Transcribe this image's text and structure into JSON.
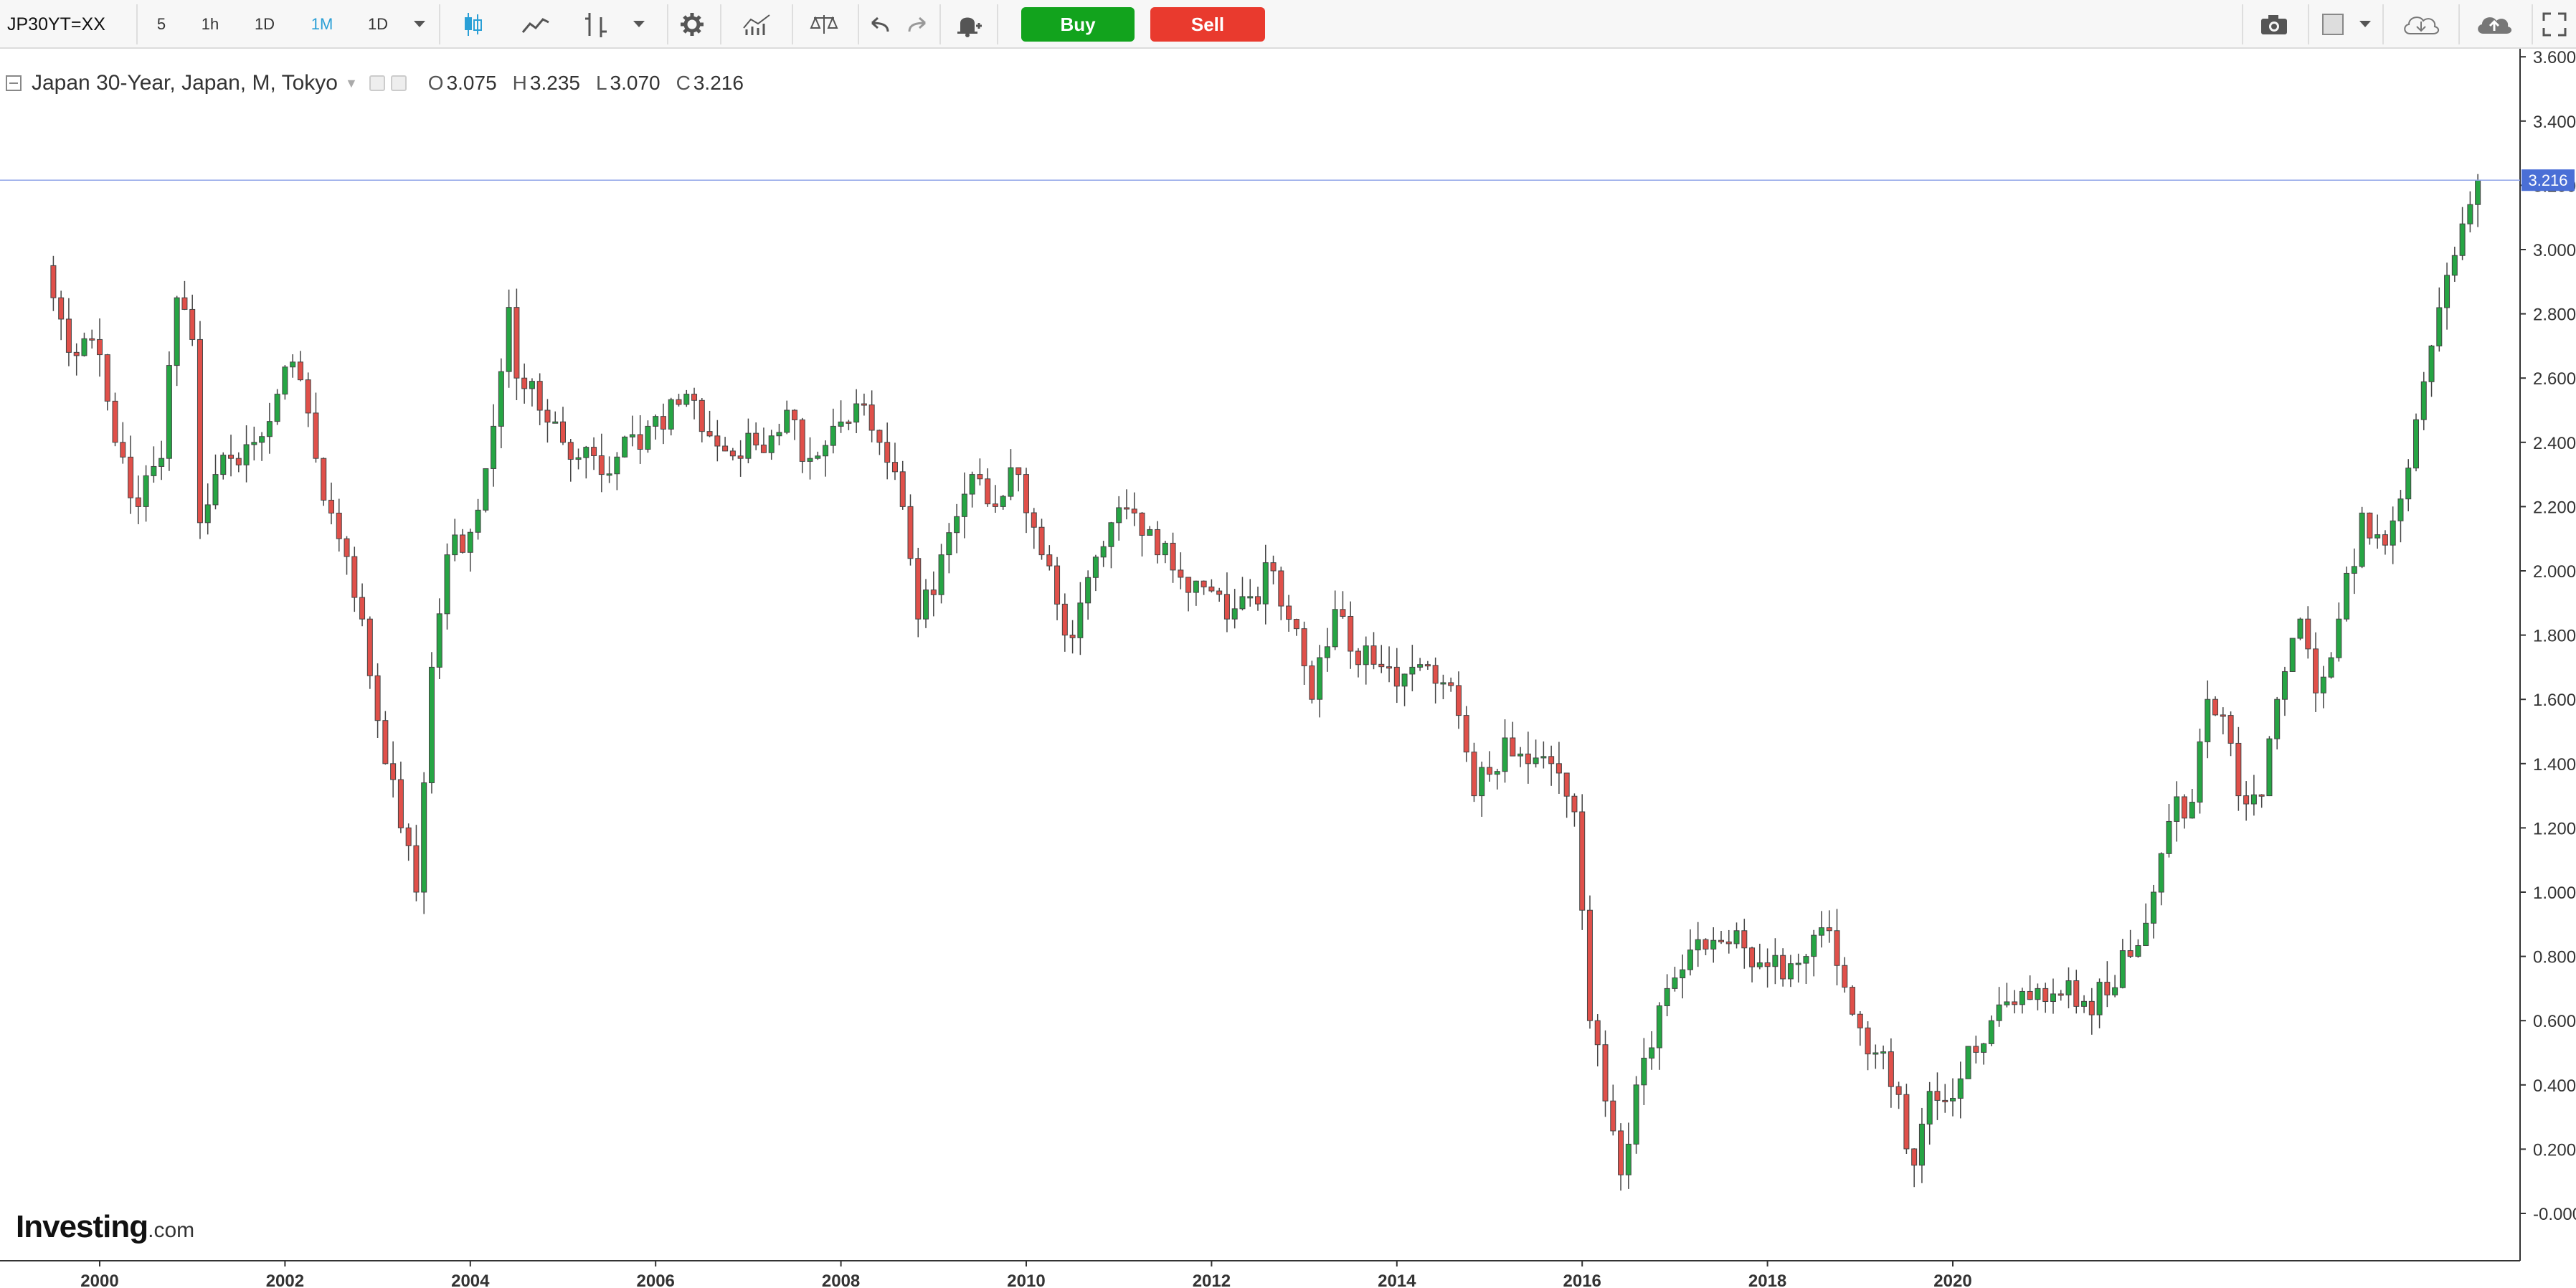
{
  "toolbar": {
    "symbol": "JP30YT=XX",
    "timeframes": [
      "5",
      "1h",
      "1D",
      "1M",
      "1D"
    ],
    "active_timeframe": "1M",
    "buy_label": "Buy",
    "sell_label": "Sell",
    "buy_color": "#12a31d",
    "sell_color": "#e93a2e",
    "icons": [
      "candles-icon",
      "line-icon",
      "bar-icon",
      "settings-icon",
      "indicators-icon",
      "compare-icon",
      "undo-icon",
      "redo-icon",
      "alert-icon",
      "camera-icon",
      "fullscreen-icon"
    ]
  },
  "legend": {
    "title": "Japan 30-Year, Japan, M, Tokyo",
    "open_label": "O",
    "open": "3.075",
    "high_label": "H",
    "high": "3.235",
    "low_label": "L",
    "low": "3.070",
    "close_label": "C",
    "close": "3.216"
  },
  "logo": {
    "brand": "Investing",
    "suffix": ".com"
  },
  "chart_data": {
    "type": "candlestick",
    "x_tick_labels": [
      "2000",
      "2002",
      "2004",
      "2006",
      "2008",
      "2010",
      "2012",
      "2014",
      "2016",
      "2018",
      "2020"
    ],
    "y_tick_labels": [
      "-0.000",
      "0.200",
      "0.400",
      "0.600",
      "0.800",
      "1.000",
      "1.200",
      "1.400",
      "1.600",
      "1.800",
      "2.000",
      "2.200",
      "2.400",
      "2.600",
      "2.800",
      "3.000",
      "3.200",
      "3.400",
      "3.600"
    ],
    "ylim": [
      -0.12,
      3.62
    ],
    "last_price": "3.216",
    "last_price_color": "#4a6fd6",
    "up_color": "#26a544",
    "down_color": "#e0504a",
    "grid": false,
    "monthly_closes": {
      "1999-07": 2.85,
      "1999-09": 2.68,
      "1999-12": 2.72,
      "2000-03": 2.4,
      "2000-06": 2.2,
      "2000-09": 2.35,
      "2000-11": 2.85,
      "2001-01": 2.72,
      "2001-02": 2.15,
      "2001-04": 2.3,
      "2001-06": 2.35,
      "2001-09": 2.4,
      "2001-12": 2.55,
      "2002-02": 2.65,
      "2002-05": 2.35,
      "2002-08": 2.1,
      "2002-11": 1.85,
      "2003-02": 1.4,
      "2003-04": 1.2,
      "2003-06": 1.0,
      "2003-08": 1.7,
      "2003-10": 2.05,
      "2004-01": 2.12,
      "2004-04": 2.45,
      "2004-06": 2.82,
      "2004-07": 2.6,
      "2004-10": 2.5,
      "2005-01": 2.4,
      "2005-06": 2.3,
      "2005-12": 2.45,
      "2006-05": 2.55,
      "2006-08": 2.42,
      "2006-12": 2.35,
      "2007-06": 2.5,
      "2007-09": 2.35,
      "2007-12": 2.45,
      "2008-03": 2.52,
      "2008-06": 2.4,
      "2008-09": 2.2,
      "2008-11": 1.85,
      "2009-02": 2.05,
      "2009-06": 2.3,
      "2009-09": 2.2,
      "2009-12": 2.3,
      "2010-03": 2.05,
      "2010-06": 1.8,
      "2010-08": 1.9,
      "2010-12": 2.15,
      "2011-03": 2.18,
      "2011-06": 2.05,
      "2011-09": 1.98,
      "2011-12": 1.95,
      "2012-03": 1.85,
      "2012-06": 1.92,
      "2012-09": 2.0,
      "2012-12": 1.82,
      "2013-02": 1.6,
      "2013-05": 1.88,
      "2013-07": 1.75,
      "2013-12": 1.7,
      "2014-03": 1.7,
      "2014-06": 1.65,
      "2014-09": 1.55,
      "2014-11": 1.3,
      "2015-03": 1.48,
      "2015-06": 1.4,
      "2015-09": 1.4,
      "2015-12": 1.25,
      "2016-02": 0.6,
      "2016-04": 0.35,
      "2016-06": 0.12,
      "2016-08": 0.4,
      "2016-12": 0.7,
      "2017-03": 0.82,
      "2017-06": 0.85,
      "2017-09": 0.88,
      "2017-12": 0.78,
      "2018-03": 0.73,
      "2018-06": 0.8,
      "2018-09": 0.88,
      "2018-12": 0.62,
      "2019-03": 0.5,
      "2019-06": 0.37,
      "2019-08": 0.15,
      "2019-10": 0.38,
      "2019-12": 0.35,
      "2020-03": 0.52,
      "2020-06": 0.6,
      "2020-09": 0.65,
      "2020-12": 0.7,
      "2021-03": 0.68,
      "2021-06": 0.66,
      "2021-09": 0.68,
      "2021-12": 0.8,
      "2022-03": 1.0,
      "2022-05": 1.22,
      "2022-08": 1.28,
      "2022-10": 1.6,
      "2022-12": 1.55,
      "2023-02": 1.3,
      "2023-05": 1.3,
      "2023-07": 1.6,
      "2023-10": 1.85,
      "2023-12": 1.62,
      "2024-03": 1.85,
      "2024-06": 2.18,
      "2024-09": 2.08,
      "2024-12": 2.32,
      "2025-03": 2.7,
      "2025-05": 2.92,
      "2025-07": 3.08,
      "2025-09": 3.216
    }
  }
}
